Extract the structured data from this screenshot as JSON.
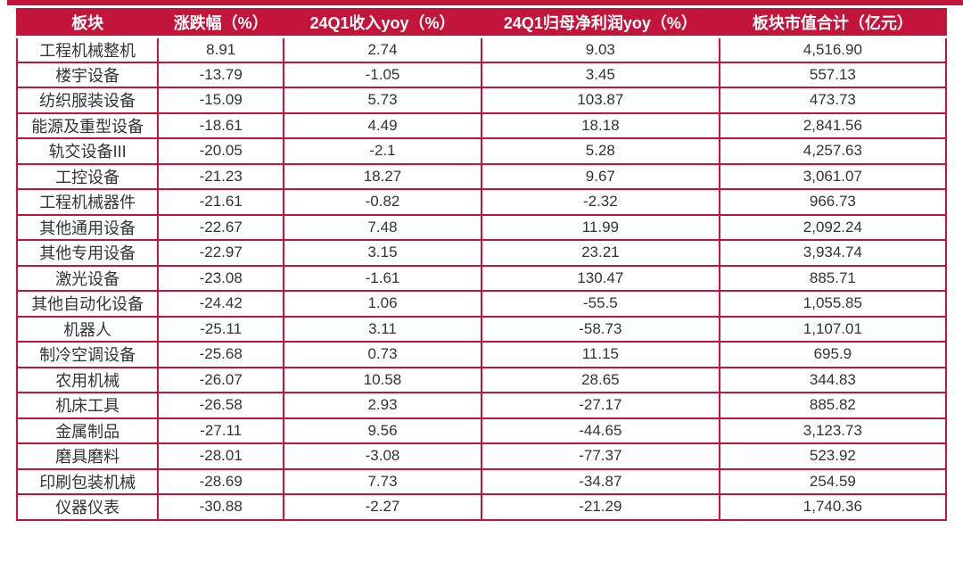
{
  "theme": {
    "accent_color": "#C3143B",
    "header_text_color": "#FFFFFF",
    "body_text_color": "#333333"
  },
  "chart_data": {
    "type": "table",
    "columns": [
      "板块",
      "涨跌幅（%）",
      "24Q1收入yoy（%）",
      "24Q1归母净利润yoy（%）",
      "板块市值合计（亿元）"
    ],
    "rows": [
      [
        "工程机械整机",
        "8.91",
        "2.74",
        "9.03",
        "4,516.90"
      ],
      [
        "楼宇设备",
        "-13.79",
        "-1.05",
        "3.45",
        "557.13"
      ],
      [
        "纺织服装设备",
        "-15.09",
        "5.73",
        "103.87",
        "473.73"
      ],
      [
        "能源及重型设备",
        "-18.61",
        "4.49",
        "18.18",
        "2,841.56"
      ],
      [
        "轨交设备III",
        "-20.05",
        "-2.1",
        "5.28",
        "4,257.63"
      ],
      [
        "工控设备",
        "-21.23",
        "18.27",
        "9.67",
        "3,061.07"
      ],
      [
        "工程机械器件",
        "-21.61",
        "-0.82",
        "-2.32",
        "966.73"
      ],
      [
        "其他通用设备",
        "-22.67",
        "7.48",
        "11.99",
        "2,092.24"
      ],
      [
        "其他专用设备",
        "-22.97",
        "3.15",
        "23.21",
        "3,934.74"
      ],
      [
        "激光设备",
        "-23.08",
        "-1.61",
        "130.47",
        "885.71"
      ],
      [
        "其他自动化设备",
        "-24.42",
        "1.06",
        "-55.5",
        "1,055.85"
      ],
      [
        "机器人",
        "-25.11",
        "3.11",
        "-58.73",
        "1,107.01"
      ],
      [
        "制冷空调设备",
        "-25.68",
        "0.73",
        "11.15",
        "695.9"
      ],
      [
        "农用机械",
        "-26.07",
        "10.58",
        "28.65",
        "344.83"
      ],
      [
        "机床工具",
        "-26.58",
        "2.93",
        "-27.17",
        "885.82"
      ],
      [
        "金属制品",
        "-27.11",
        "9.56",
        "-44.65",
        "3,123.73"
      ],
      [
        "磨具磨料",
        "-28.01",
        "-3.08",
        "-77.37",
        "523.92"
      ],
      [
        "印刷包装机械",
        "-28.69",
        "7.73",
        "-34.87",
        "254.59"
      ],
      [
        "仪器仪表",
        "-30.88",
        "-2.27",
        "-21.29",
        "1,740.36"
      ]
    ],
    "legend": false,
    "grid": true
  }
}
